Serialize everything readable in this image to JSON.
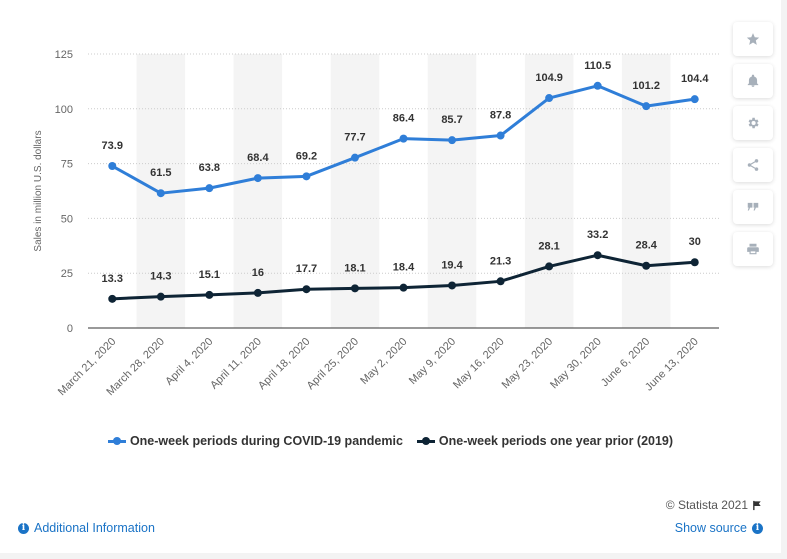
{
  "chart_data": {
    "type": "line",
    "categories": [
      "March 21, 2020",
      "March 28, 2020",
      "April 4, 2020",
      "April 11, 2020",
      "April 18, 2020",
      "April 25, 2020",
      "May 2, 2020",
      "May 9, 2020",
      "May 16, 2020",
      "May 23, 2020",
      "May 30, 2020",
      "June 6, 2020",
      "June 13, 2020"
    ],
    "series": [
      {
        "name": "One-week periods during COVID-19 pandemic",
        "color": "#2f7ed8",
        "values": [
          73.9,
          61.5,
          63.8,
          68.4,
          69.2,
          77.7,
          86.4,
          85.7,
          87.8,
          104.9,
          110.5,
          101.2,
          104.4
        ]
      },
      {
        "name": "One-week periods one year prior (2019)",
        "color": "#0e2435",
        "values": [
          13.3,
          14.3,
          15.1,
          16,
          17.7,
          18.1,
          18.4,
          19.4,
          21.3,
          28.1,
          33.2,
          28.4,
          30
        ]
      }
    ],
    "value_labels": [
      [
        "73.9",
        "61.5",
        "63.8",
        "68.4",
        "69.2",
        "77.7",
        "86.4",
        "85.7",
        "87.8",
        "104.9",
        "110.5",
        "101.2",
        "104.4"
      ],
      [
        "13.3",
        "14.3",
        "15.1",
        "16",
        "17.7",
        "18.1",
        "18.4",
        "19.4",
        "21.3",
        "28.1",
        "33.2",
        "28.4",
        "30"
      ]
    ],
    "ylabel": "Sales in million U.S. dollars",
    "xlabel": "",
    "ylim": [
      0,
      125
    ],
    "yticks": [
      0,
      25,
      50,
      75,
      100,
      125
    ],
    "grid": true,
    "legend_position": "bottom"
  },
  "toolbar": {
    "icons": [
      "star-icon",
      "bell-icon",
      "gear-icon",
      "share-icon",
      "quote-icon",
      "print-icon"
    ]
  },
  "footer": {
    "copyright": "© Statista 2021",
    "additional_info": "Additional Information",
    "show_source": "Show source"
  },
  "colors": {
    "band": "#f4f4f4",
    "grid": "#cccccc",
    "link": "#1a73c6"
  }
}
